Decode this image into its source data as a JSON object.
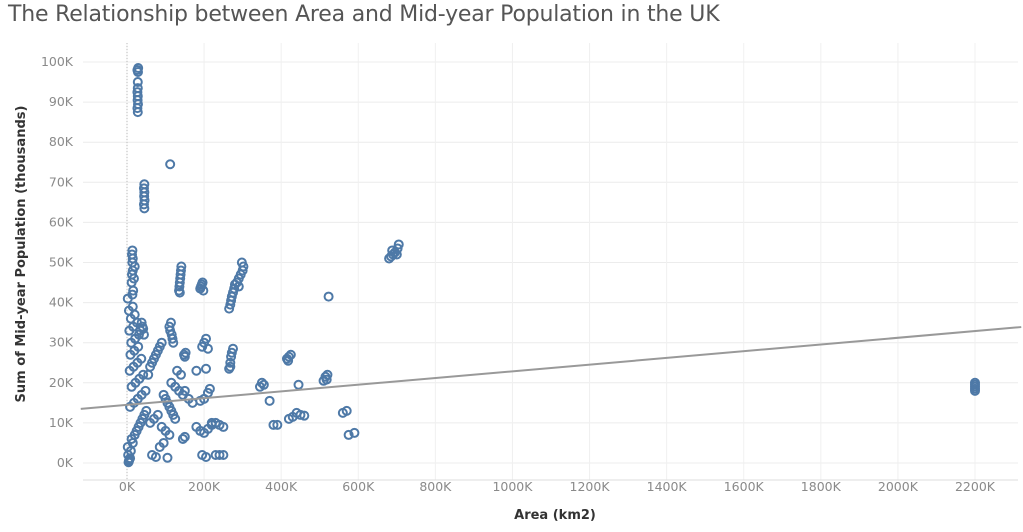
{
  "chart_data": {
    "type": "scatter",
    "title": "The Relationship between Area and Mid-year Population in the UK",
    "xlabel": "Area (km2)",
    "ylabel": "Sum of Mid-year Population (thousands)",
    "xlim": [
      -120000,
      2320000
    ],
    "ylim": [
      0,
      100000
    ],
    "x_ticks": [
      0,
      200000,
      400000,
      600000,
      800000,
      1000000,
      1200000,
      1400000,
      1600000,
      1800000,
      2000000,
      2200000
    ],
    "x_tick_labels": [
      "0K",
      "200K",
      "400K",
      "600K",
      "800K",
      "1000K",
      "1200K",
      "1400K",
      "1600K",
      "1800K",
      "2000K",
      "2200K"
    ],
    "y_ticks": [
      0,
      10000,
      20000,
      30000,
      40000,
      50000,
      60000,
      70000,
      80000,
      90000,
      100000
    ],
    "y_tick_labels": [
      "0K",
      "10K",
      "20K",
      "30K",
      "40K",
      "50K",
      "60K",
      "70K",
      "80K",
      "90K",
      "100K"
    ],
    "grid": true,
    "marker": "open-circle",
    "point_color": "#4e79a7",
    "trend_line": {
      "color": "#999999",
      "x": [
        -120000,
        2320000
      ],
      "y": [
        13500,
        33900
      ]
    },
    "points": [
      [
        5000,
        500
      ],
      [
        4000,
        200
      ],
      [
        6000,
        800
      ],
      [
        8000,
        1200
      ],
      [
        3000,
        2000
      ],
      [
        10000,
        3000
      ],
      [
        2000,
        4000
      ],
      [
        15000,
        5000
      ],
      [
        12000,
        6000
      ],
      [
        20000,
        7000
      ],
      [
        25000,
        8000
      ],
      [
        30000,
        9000
      ],
      [
        35000,
        10000
      ],
      [
        40000,
        11000
      ],
      [
        45000,
        12000
      ],
      [
        50000,
        13000
      ],
      [
        8000,
        14000
      ],
      [
        18000,
        15000
      ],
      [
        28000,
        16000
      ],
      [
        38000,
        17000
      ],
      [
        48000,
        18000
      ],
      [
        12000,
        19000
      ],
      [
        22000,
        20000
      ],
      [
        32000,
        21000
      ],
      [
        42000,
        22000
      ],
      [
        7000,
        23000
      ],
      [
        17000,
        24000
      ],
      [
        27000,
        25000
      ],
      [
        37000,
        26000
      ],
      [
        9000,
        27000
      ],
      [
        19000,
        28000
      ],
      [
        29000,
        29000
      ],
      [
        11000,
        30000
      ],
      [
        21000,
        31000
      ],
      [
        31000,
        32000
      ],
      [
        6000,
        33000
      ],
      [
        16000,
        34000
      ],
      [
        26000,
        35000
      ],
      [
        10000,
        36000
      ],
      [
        20000,
        37000
      ],
      [
        5000,
        38000
      ],
      [
        15000,
        39000
      ],
      [
        2000,
        41000
      ],
      [
        14000,
        42000
      ],
      [
        16000,
        43000
      ],
      [
        12000,
        45000
      ],
      [
        18000,
        46000
      ],
      [
        13000,
        47000
      ],
      [
        15000,
        48000
      ],
      [
        20000,
        49000
      ],
      [
        14000,
        50000
      ],
      [
        15000,
        51000
      ],
      [
        13000,
        52000
      ],
      [
        14000,
        53000
      ],
      [
        28000,
        87500
      ],
      [
        27000,
        88500
      ],
      [
        28500,
        89500
      ],
      [
        27500,
        90500
      ],
      [
        28000,
        91500
      ],
      [
        27000,
        92500
      ],
      [
        28000,
        93500
      ],
      [
        28000,
        95000
      ],
      [
        28500,
        97500
      ],
      [
        27000,
        98000
      ],
      [
        29000,
        98500
      ],
      [
        45000,
        63500
      ],
      [
        44000,
        64500
      ],
      [
        45500,
        65500
      ],
      [
        44500,
        66500
      ],
      [
        45000,
        67500
      ],
      [
        44000,
        68500
      ],
      [
        45000,
        69500
      ],
      [
        38000,
        35000
      ],
      [
        40000,
        34000
      ],
      [
        42000,
        33500
      ],
      [
        35000,
        33000
      ],
      [
        44000,
        32000
      ],
      [
        55000,
        22000
      ],
      [
        60000,
        24000
      ],
      [
        65000,
        25000
      ],
      [
        70000,
        26000
      ],
      [
        75000,
        27000
      ],
      [
        80000,
        28000
      ],
      [
        85000,
        29000
      ],
      [
        90000,
        30000
      ],
      [
        60000,
        10000
      ],
      [
        70000,
        11000
      ],
      [
        80000,
        12000
      ],
      [
        90000,
        9000
      ],
      [
        100000,
        8000
      ],
      [
        110000,
        7000
      ],
      [
        95000,
        5000
      ],
      [
        85000,
        4000
      ],
      [
        65000,
        2000
      ],
      [
        75000,
        1500
      ],
      [
        105000,
        1300
      ],
      [
        105000,
        15000
      ],
      [
        110000,
        14000
      ],
      [
        115000,
        13000
      ],
      [
        120000,
        12000
      ],
      [
        125000,
        11000
      ],
      [
        100000,
        16000
      ],
      [
        95000,
        17000
      ],
      [
        115000,
        20000
      ],
      [
        125000,
        19000
      ],
      [
        135000,
        18000
      ],
      [
        145000,
        17000
      ],
      [
        110000,
        34000
      ],
      [
        112000,
        33000
      ],
      [
        114000,
        35000
      ],
      [
        116000,
        32000
      ],
      [
        118000,
        31000
      ],
      [
        120000,
        30000
      ],
      [
        112000,
        74500
      ],
      [
        130000,
        23000
      ],
      [
        140000,
        22000
      ],
      [
        150000,
        18000
      ],
      [
        160000,
        16000
      ],
      [
        170000,
        15000
      ],
      [
        135000,
        43000
      ],
      [
        136000,
        44000
      ],
      [
        137000,
        45000
      ],
      [
        138000,
        46000
      ],
      [
        139000,
        47000
      ],
      [
        140000,
        48000
      ],
      [
        141000,
        49000
      ],
      [
        137000,
        42500
      ],
      [
        145000,
        6000
      ],
      [
        150000,
        6500
      ],
      [
        150000,
        26500
      ],
      [
        152000,
        27500
      ],
      [
        148000,
        27000
      ],
      [
        180000,
        9000
      ],
      [
        190000,
        8000
      ],
      [
        200000,
        7500
      ],
      [
        210000,
        8500
      ],
      [
        220000,
        9500
      ],
      [
        230000,
        10000
      ],
      [
        190000,
        15500
      ],
      [
        200000,
        16000
      ],
      [
        210000,
        17500
      ],
      [
        215000,
        18500
      ],
      [
        205000,
        23500
      ],
      [
        180000,
        23000
      ],
      [
        195000,
        29000
      ],
      [
        200000,
        30000
      ],
      [
        205000,
        31000
      ],
      [
        210000,
        28500
      ],
      [
        190000,
        43500
      ],
      [
        192000,
        44000
      ],
      [
        194000,
        44500
      ],
      [
        196000,
        45000
      ],
      [
        198000,
        43000
      ],
      [
        195000,
        2000
      ],
      [
        205000,
        1500
      ],
      [
        230000,
        2000
      ],
      [
        240000,
        2000
      ],
      [
        250000,
        2000
      ],
      [
        240000,
        9500
      ],
      [
        220000,
        10000
      ],
      [
        250000,
        9000
      ],
      [
        265000,
        23500
      ],
      [
        268000,
        25000
      ],
      [
        270000,
        26500
      ],
      [
        272000,
        27500
      ],
      [
        275000,
        28500
      ],
      [
        268000,
        24000
      ],
      [
        265000,
        38500
      ],
      [
        268000,
        39500
      ],
      [
        270000,
        40500
      ],
      [
        272000,
        41500
      ],
      [
        275000,
        42500
      ],
      [
        278000,
        43500
      ],
      [
        280000,
        44500
      ],
      [
        285000,
        45000
      ],
      [
        290000,
        46000
      ],
      [
        295000,
        47000
      ],
      [
        300000,
        48000
      ],
      [
        302000,
        49000
      ],
      [
        298000,
        50000
      ],
      [
        290000,
        44000
      ],
      [
        345000,
        19000
      ],
      [
        350000,
        20000
      ],
      [
        355000,
        19500
      ],
      [
        370000,
        15500
      ],
      [
        380000,
        9500
      ],
      [
        390000,
        9500
      ],
      [
        415000,
        26000
      ],
      [
        420000,
        26500
      ],
      [
        425000,
        27000
      ],
      [
        418000,
        25500
      ],
      [
        420000,
        11000
      ],
      [
        430000,
        11500
      ],
      [
        440000,
        12500
      ],
      [
        450000,
        12000
      ],
      [
        460000,
        11800
      ],
      [
        445000,
        19500
      ],
      [
        510000,
        20500
      ],
      [
        515000,
        21500
      ],
      [
        520000,
        22000
      ],
      [
        518000,
        20800
      ],
      [
        523000,
        41500
      ],
      [
        560000,
        12500
      ],
      [
        570000,
        13000
      ],
      [
        575000,
        7000
      ],
      [
        590000,
        7500
      ],
      [
        680000,
        51000
      ],
      [
        685000,
        51500
      ],
      [
        690000,
        52000
      ],
      [
        695000,
        52500
      ],
      [
        688000,
        53000
      ],
      [
        700000,
        52000
      ],
      [
        705000,
        54500
      ],
      [
        702000,
        53500
      ],
      [
        2200000,
        18000
      ],
      [
        2200000,
        18500
      ],
      [
        2200000,
        19000
      ],
      [
        2200000,
        19500
      ],
      [
        2200000,
        20000
      ]
    ]
  }
}
